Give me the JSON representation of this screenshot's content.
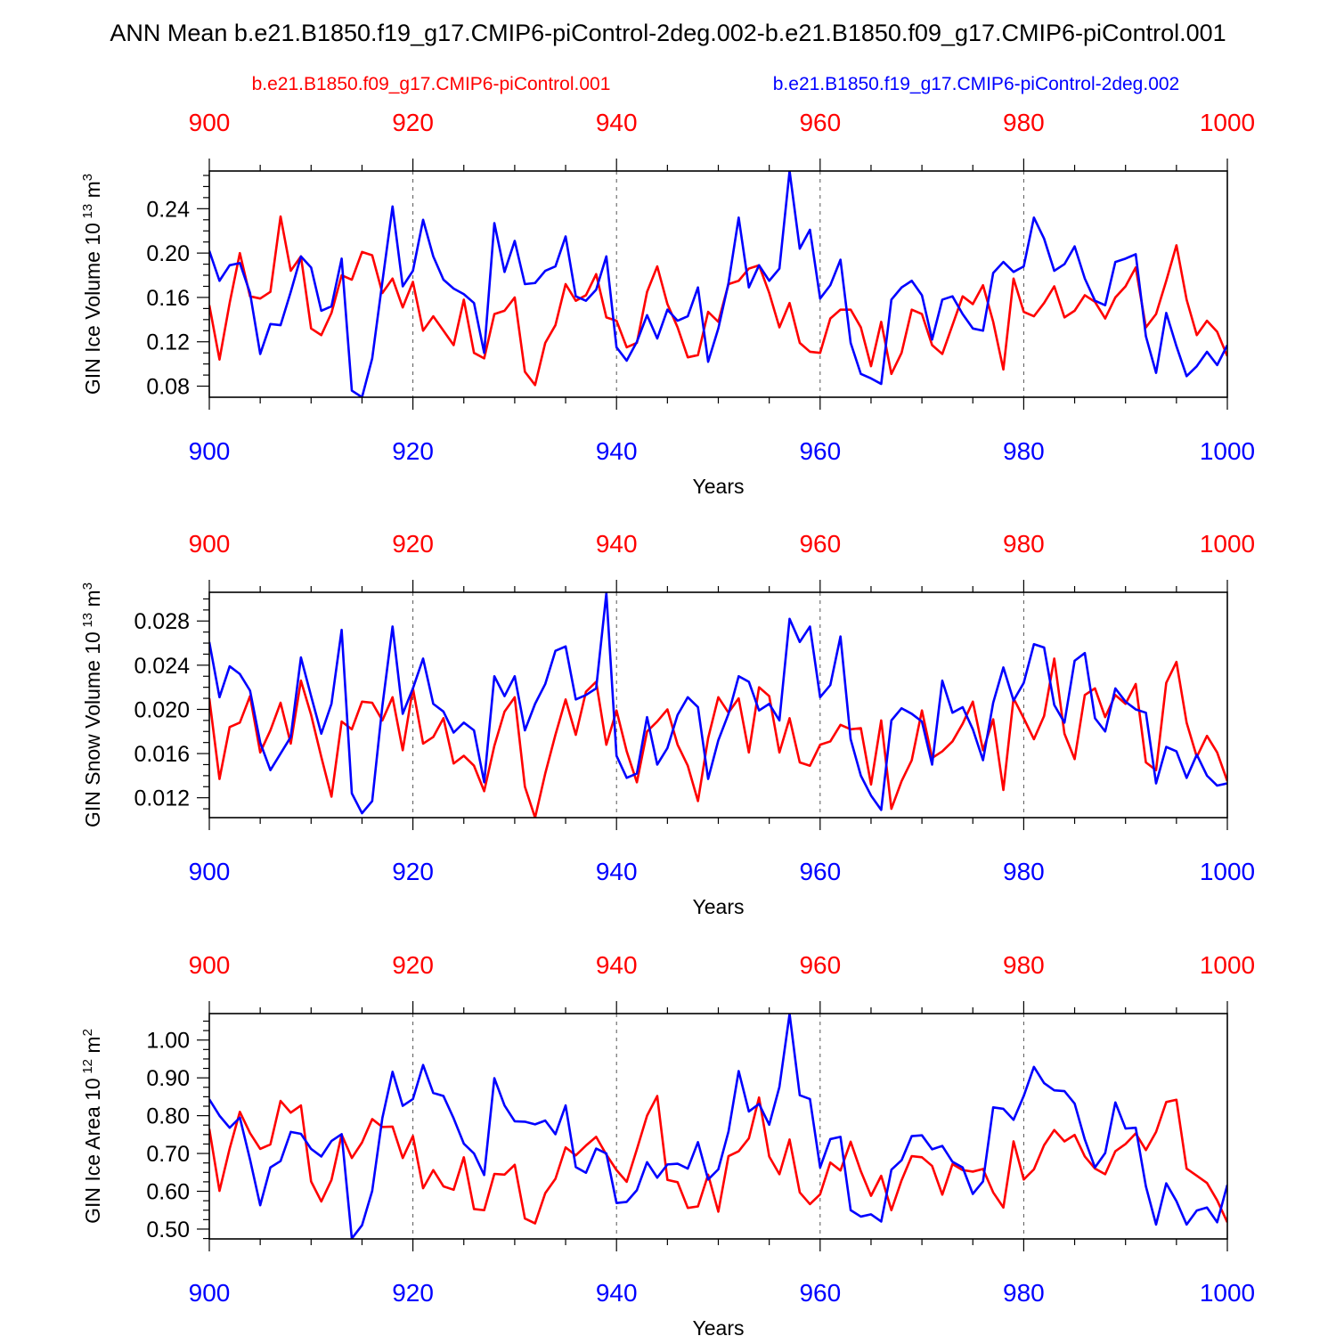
{
  "figure": {
    "title": "ANN Mean b.e21.B1850.f19_g17.CMIP6-piControl-2deg.002-b.e21.B1850.f09_g17.CMIP6-piControl.001",
    "legend": [
      {
        "name": "b.e21.B1850.f09_g17.CMIP6-piControl.001",
        "color": "#ff0000"
      },
      {
        "name": "b.e21.B1850.f19_g17.CMIP6-piControl-2deg.002",
        "color": "#0000ff"
      }
    ]
  },
  "chart_data": [
    {
      "type": "line",
      "title": "",
      "xlabel": "Years",
      "ylabel": "GIN Ice Volume 10",
      "ylabel_exp": "13",
      "ylabel_unit": "m",
      "ylabel_unit_exp": "3",
      "xlim": [
        900,
        1000
      ],
      "ylim": [
        0.07,
        0.274
      ],
      "xticks": [
        900,
        920,
        940,
        960,
        980,
        1000
      ],
      "xtick_labels": [
        "900",
        "920",
        "940",
        "960",
        "980",
        "1000"
      ],
      "yticks": [
        0.08,
        0.12,
        0.16,
        0.2,
        0.24
      ],
      "ytick_labels": [
        "0.08",
        "0.12",
        "0.16",
        "0.20",
        "0.24"
      ],
      "x_start": 900,
      "series": [
        {
          "name": "b.e21.B1850.f09_g17.CMIP6-piControl.001",
          "color": "#ff0000",
          "values": [
            0.153,
            0.104,
            0.155,
            0.2,
            0.161,
            0.159,
            0.165,
            0.233,
            0.184,
            0.197,
            0.132,
            0.126,
            0.146,
            0.18,
            0.176,
            0.201,
            0.198,
            0.164,
            0.177,
            0.151,
            0.174,
            0.13,
            0.143,
            0.13,
            0.117,
            0.158,
            0.11,
            0.105,
            0.145,
            0.148,
            0.16,
            0.093,
            0.081,
            0.119,
            0.135,
            0.172,
            0.157,
            0.162,
            0.181,
            0.142,
            0.139,
            0.115,
            0.119,
            0.165,
            0.188,
            0.154,
            0.133,
            0.106,
            0.108,
            0.147,
            0.138,
            0.172,
            0.175,
            0.186,
            0.189,
            0.164,
            0.133,
            0.155,
            0.119,
            0.111,
            0.11,
            0.141,
            0.149,
            0.149,
            0.133,
            0.098,
            0.138,
            0.091,
            0.11,
            0.149,
            0.145,
            0.117,
            0.109,
            0.135,
            0.161,
            0.154,
            0.171,
            0.138,
            0.095,
            0.177,
            0.147,
            0.143,
            0.155,
            0.17,
            0.142,
            0.148,
            0.162,
            0.156,
            0.141,
            0.16,
            0.17,
            0.187,
            0.133,
            0.145,
            0.175,
            0.207,
            0.158,
            0.126,
            0.139,
            0.129,
            0.107
          ]
        },
        {
          "name": "b.e21.B1850.f19_g17.CMIP6-piControl-2deg.002",
          "color": "#0000ff",
          "values": [
            0.202,
            0.175,
            0.189,
            0.191,
            0.164,
            0.109,
            0.136,
            0.135,
            0.165,
            0.197,
            0.187,
            0.148,
            0.152,
            0.195,
            0.076,
            0.07,
            0.105,
            0.174,
            0.242,
            0.17,
            0.184,
            0.23,
            0.197,
            0.176,
            0.168,
            0.163,
            0.155,
            0.11,
            0.227,
            0.183,
            0.211,
            0.172,
            0.173,
            0.184,
            0.188,
            0.215,
            0.161,
            0.157,
            0.167,
            0.197,
            0.115,
            0.103,
            0.12,
            0.144,
            0.123,
            0.149,
            0.139,
            0.143,
            0.169,
            0.102,
            0.132,
            0.173,
            0.232,
            0.169,
            0.189,
            0.175,
            0.186,
            0.274,
            0.204,
            0.221,
            0.159,
            0.171,
            0.194,
            0.119,
            0.091,
            0.087,
            0.082,
            0.158,
            0.169,
            0.175,
            0.162,
            0.122,
            0.158,
            0.161,
            0.145,
            0.132,
            0.13,
            0.182,
            0.192,
            0.183,
            0.188,
            0.232,
            0.213,
            0.184,
            0.19,
            0.206,
            0.177,
            0.157,
            0.153,
            0.192,
            0.195,
            0.199,
            0.125,
            0.092,
            0.146,
            0.116,
            0.089,
            0.098,
            0.111,
            0.099,
            0.117
          ]
        }
      ]
    },
    {
      "type": "line",
      "title": "",
      "xlabel": "Years",
      "ylabel": "GIN Snow Volume 10",
      "ylabel_exp": "13",
      "ylabel_unit": "m",
      "ylabel_unit_exp": "3",
      "xlim": [
        900,
        1000
      ],
      "ylim": [
        0.0102,
        0.0306
      ],
      "xticks": [
        900,
        920,
        940,
        960,
        980,
        1000
      ],
      "xtick_labels": [
        "900",
        "920",
        "940",
        "960",
        "980",
        "1000"
      ],
      "yticks": [
        0.012,
        0.016,
        0.02,
        0.024,
        0.028
      ],
      "ytick_labels": [
        "0.012",
        "0.016",
        "0.020",
        "0.024",
        "0.028"
      ],
      "x_start": 900,
      "series": [
        {
          "name": "b.e21.B1850.f09_g17.CMIP6-piControl.001",
          "color": "#ff0000",
          "values": [
            0.021,
            0.0137,
            0.0184,
            0.0188,
            0.0212,
            0.0161,
            0.0181,
            0.0206,
            0.0169,
            0.0226,
            0.0195,
            0.0157,
            0.0121,
            0.0189,
            0.0182,
            0.0207,
            0.0206,
            0.019,
            0.0211,
            0.0163,
            0.0219,
            0.0169,
            0.0175,
            0.0192,
            0.0151,
            0.0158,
            0.0149,
            0.0126,
            0.0167,
            0.0198,
            0.0211,
            0.013,
            0.0102,
            0.0142,
            0.0177,
            0.0209,
            0.0177,
            0.0216,
            0.0225,
            0.0168,
            0.0199,
            0.0162,
            0.0134,
            0.018,
            0.0189,
            0.02,
            0.0168,
            0.0149,
            0.0117,
            0.0174,
            0.0211,
            0.0197,
            0.021,
            0.0161,
            0.022,
            0.0212,
            0.0161,
            0.0192,
            0.0152,
            0.0149,
            0.0168,
            0.0171,
            0.0186,
            0.0182,
            0.0183,
            0.0132,
            0.019,
            0.011,
            0.0135,
            0.0154,
            0.0199,
            0.0156,
            0.0162,
            0.0171,
            0.0187,
            0.0207,
            0.0163,
            0.0191,
            0.0127,
            0.021,
            0.0192,
            0.0173,
            0.0194,
            0.0246,
            0.0178,
            0.0155,
            0.0213,
            0.0219,
            0.0193,
            0.0213,
            0.0205,
            0.0223,
            0.0152,
            0.0145,
            0.0224,
            0.0243,
            0.0188,
            0.0157,
            0.0176,
            0.0161,
            0.0135
          ]
        },
        {
          "name": "b.e21.B1850.f19_g17.CMIP6-piControl-2deg.002",
          "color": "#0000ff",
          "values": [
            0.0261,
            0.0211,
            0.0239,
            0.0232,
            0.0217,
            0.017,
            0.0145,
            0.016,
            0.0175,
            0.0247,
            0.0212,
            0.0178,
            0.0205,
            0.0272,
            0.0124,
            0.0106,
            0.0117,
            0.0203,
            0.0275,
            0.0196,
            0.0219,
            0.0246,
            0.0205,
            0.0198,
            0.0179,
            0.0188,
            0.0181,
            0.0134,
            0.023,
            0.0212,
            0.023,
            0.0181,
            0.0205,
            0.0223,
            0.0253,
            0.0257,
            0.0209,
            0.0213,
            0.0219,
            0.0305,
            0.0158,
            0.0138,
            0.0142,
            0.0193,
            0.015,
            0.0165,
            0.0195,
            0.0211,
            0.0202,
            0.0137,
            0.0172,
            0.0196,
            0.023,
            0.0225,
            0.0199,
            0.0205,
            0.019,
            0.0282,
            0.0261,
            0.0275,
            0.0211,
            0.0222,
            0.0266,
            0.0173,
            0.014,
            0.0122,
            0.0109,
            0.019,
            0.0201,
            0.0196,
            0.0189,
            0.015,
            0.0226,
            0.0197,
            0.0202,
            0.0182,
            0.0154,
            0.0206,
            0.0238,
            0.0208,
            0.0224,
            0.0259,
            0.0256,
            0.0204,
            0.0188,
            0.0244,
            0.0251,
            0.0192,
            0.018,
            0.0219,
            0.0207,
            0.02,
            0.0197,
            0.0133,
            0.0166,
            0.0162,
            0.0138,
            0.0159,
            0.014,
            0.0131,
            0.0133
          ]
        }
      ]
    },
    {
      "type": "line",
      "title": "",
      "xlabel": "Years",
      "ylabel": "GIN Ice Area 10",
      "ylabel_exp": "12",
      "ylabel_unit": "m",
      "ylabel_unit_exp": "2",
      "xlim": [
        900,
        1000
      ],
      "ylim": [
        0.474,
        1.07
      ],
      "xticks": [
        900,
        920,
        940,
        960,
        980,
        1000
      ],
      "xtick_labels": [
        "900",
        "920",
        "940",
        "960",
        "980",
        "1000"
      ],
      "yticks": [
        0.5,
        0.6,
        0.7,
        0.8,
        0.9,
        1.0
      ],
      "ytick_labels": [
        "0.50",
        "0.60",
        "0.70",
        "0.80",
        "0.90",
        "1.00"
      ],
      "x_start": 900,
      "series": [
        {
          "name": "b.e21.B1850.f09_g17.CMIP6-piControl.001",
          "color": "#ff0000",
          "values": [
            0.765,
            0.601,
            0.713,
            0.81,
            0.754,
            0.712,
            0.724,
            0.839,
            0.808,
            0.827,
            0.626,
            0.573,
            0.63,
            0.75,
            0.688,
            0.729,
            0.791,
            0.77,
            0.771,
            0.688,
            0.746,
            0.608,
            0.656,
            0.613,
            0.604,
            0.69,
            0.553,
            0.55,
            0.646,
            0.644,
            0.67,
            0.528,
            0.515,
            0.595,
            0.633,
            0.716,
            0.695,
            0.721,
            0.744,
            0.697,
            0.656,
            0.625,
            0.711,
            0.8,
            0.852,
            0.63,
            0.624,
            0.556,
            0.56,
            0.644,
            0.546,
            0.693,
            0.706,
            0.74,
            0.848,
            0.692,
            0.645,
            0.737,
            0.597,
            0.566,
            0.592,
            0.676,
            0.655,
            0.731,
            0.653,
            0.588,
            0.641,
            0.55,
            0.629,
            0.693,
            0.69,
            0.667,
            0.591,
            0.672,
            0.656,
            0.652,
            0.659,
            0.597,
            0.557,
            0.732,
            0.631,
            0.658,
            0.722,
            0.762,
            0.732,
            0.749,
            0.692,
            0.66,
            0.645,
            0.706,
            0.725,
            0.753,
            0.709,
            0.757,
            0.836,
            0.842,
            0.66,
            0.641,
            0.622,
            0.576,
            0.518
          ]
        },
        {
          "name": "b.e21.B1850.f19_g17.CMIP6-piControl-2deg.002",
          "color": "#0000ff",
          "values": [
            0.843,
            0.8,
            0.768,
            0.795,
            0.684,
            0.563,
            0.663,
            0.68,
            0.757,
            0.752,
            0.712,
            0.692,
            0.733,
            0.751,
            0.475,
            0.51,
            0.601,
            0.794,
            0.916,
            0.826,
            0.844,
            0.934,
            0.86,
            0.852,
            0.793,
            0.726,
            0.7,
            0.643,
            0.899,
            0.827,
            0.785,
            0.784,
            0.777,
            0.787,
            0.751,
            0.827,
            0.664,
            0.649,
            0.713,
            0.7,
            0.569,
            0.572,
            0.603,
            0.677,
            0.636,
            0.671,
            0.673,
            0.66,
            0.73,
            0.631,
            0.658,
            0.758,
            0.918,
            0.811,
            0.831,
            0.776,
            0.876,
            1.069,
            0.854,
            0.844,
            0.663,
            0.738,
            0.744,
            0.55,
            0.533,
            0.539,
            0.52,
            0.657,
            0.682,
            0.746,
            0.748,
            0.711,
            0.72,
            0.678,
            0.663,
            0.593,
            0.626,
            0.822,
            0.818,
            0.789,
            0.852,
            0.929,
            0.886,
            0.867,
            0.865,
            0.832,
            0.737,
            0.663,
            0.701,
            0.835,
            0.766,
            0.768,
            0.613,
            0.512,
            0.621,
            0.574,
            0.512,
            0.549,
            0.557,
            0.518,
            0.617
          ]
        }
      ]
    }
  ]
}
